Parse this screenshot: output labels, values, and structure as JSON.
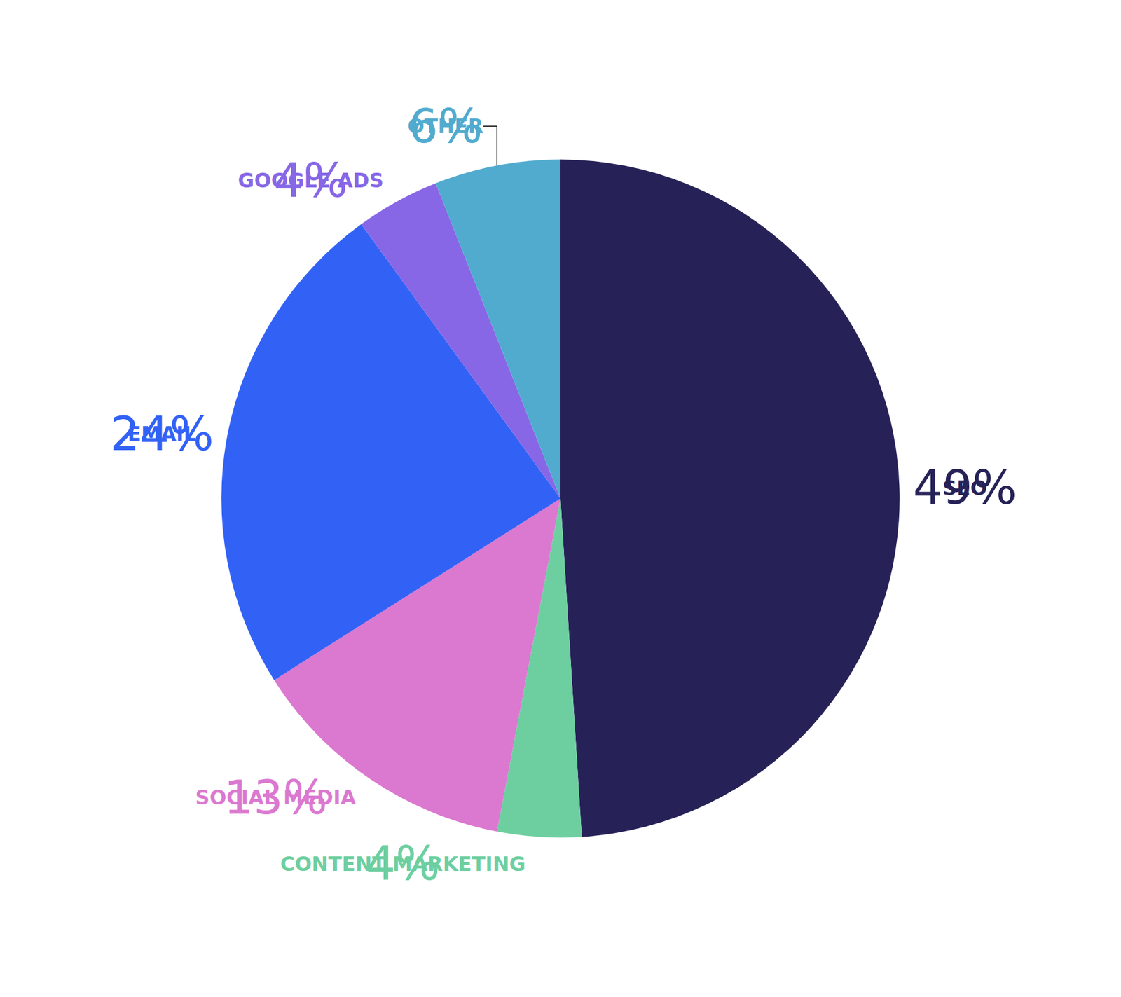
{
  "chart_data": {
    "type": "pie",
    "categories": [
      "SEO",
      "CONTENT MARKETING",
      "SOCIAL MEDIA",
      "EMAIL",
      "GOOGLE ADS",
      "OTHER"
    ],
    "values": [
      49,
      4,
      13,
      24,
      4,
      6
    ],
    "value_labels": [
      "49%",
      "4%",
      "13%",
      "24%",
      "4%",
      "6%"
    ],
    "colors": [
      "#262257",
      "#6dcfa0",
      "#db78d0",
      "#3262f5",
      "#8767e6",
      "#51abcf"
    ],
    "data_labels": true
  }
}
